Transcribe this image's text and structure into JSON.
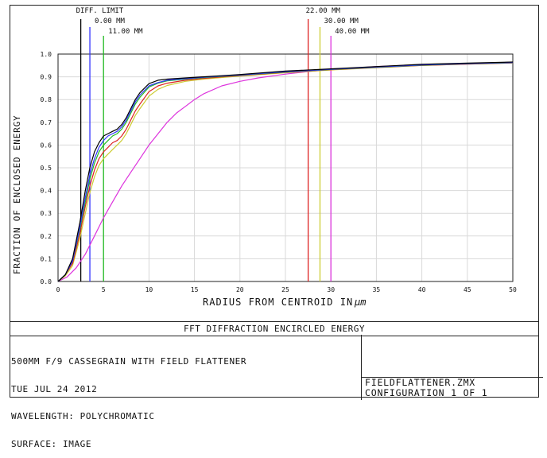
{
  "chart_data": {
    "type": "line",
    "xlabel": "RADIUS FROM CENTROID IN",
    "xlabel_unit": "µm",
    "ylabel": "FRACTION OF ENCLOSED ENERGY",
    "xlim": [
      0,
      50
    ],
    "ylim": [
      0,
      1.0
    ],
    "x_ticks": [
      "0",
      "5",
      "10",
      "15",
      "20",
      "25",
      "30",
      "35",
      "40",
      "45",
      "50"
    ],
    "y_ticks": [
      "0.0",
      "0.1",
      "0.2",
      "0.3",
      "0.4",
      "0.5",
      "0.6",
      "0.7",
      "0.8",
      "0.9",
      "1.0"
    ],
    "grid": true,
    "series": [
      {
        "name": "DIFF. LIMIT",
        "color": "#000000",
        "x": [
          0,
          0.8,
          1.6,
          2.4,
          3.0,
          3.5,
          4,
          4.5,
          5,
          5.5,
          6,
          6.5,
          7,
          7.5,
          8,
          8.5,
          9,
          10,
          11,
          12,
          14,
          16,
          18,
          20,
          25,
          30,
          35,
          40,
          45,
          50
        ],
        "y": [
          0,
          0.03,
          0.1,
          0.26,
          0.4,
          0.5,
          0.57,
          0.61,
          0.64,
          0.65,
          0.66,
          0.67,
          0.69,
          0.72,
          0.76,
          0.8,
          0.83,
          0.87,
          0.885,
          0.89,
          0.895,
          0.9,
          0.905,
          0.91,
          0.925,
          0.935,
          0.945,
          0.955,
          0.96,
          0.965
        ],
        "marker_x": 2.5
      },
      {
        "name": "0.00 MM",
        "color": "#3333ff",
        "x": [
          0,
          0.8,
          1.6,
          2.4,
          3.0,
          3.5,
          4,
          4.5,
          5,
          5.5,
          6,
          6.5,
          7,
          7.5,
          8,
          8.5,
          9,
          10,
          11,
          12,
          14,
          16,
          18,
          20,
          25,
          30,
          35,
          40,
          45,
          50
        ],
        "y": [
          0,
          0.03,
          0.09,
          0.24,
          0.37,
          0.47,
          0.54,
          0.59,
          0.62,
          0.64,
          0.65,
          0.66,
          0.68,
          0.71,
          0.75,
          0.79,
          0.82,
          0.86,
          0.875,
          0.885,
          0.892,
          0.898,
          0.903,
          0.908,
          0.922,
          0.933,
          0.943,
          0.952,
          0.958,
          0.963
        ],
        "marker_x": 3.5
      },
      {
        "name": "11.00 MM",
        "color": "#22bb22",
        "x": [
          0,
          0.8,
          1.6,
          2.4,
          3.0,
          3.5,
          4,
          4.5,
          5,
          5.5,
          6,
          6.5,
          7,
          7.5,
          8,
          8.5,
          9,
          10,
          11,
          12,
          14,
          16,
          18,
          20,
          25,
          30,
          35,
          40,
          45,
          50
        ],
        "y": [
          0,
          0.03,
          0.09,
          0.23,
          0.35,
          0.45,
          0.52,
          0.57,
          0.6,
          0.62,
          0.64,
          0.65,
          0.67,
          0.7,
          0.74,
          0.78,
          0.81,
          0.855,
          0.872,
          0.882,
          0.89,
          0.896,
          0.902,
          0.907,
          0.921,
          0.932,
          0.942,
          0.951,
          0.957,
          0.962
        ],
        "marker_x": 5.0
      },
      {
        "name": "22.00 MM",
        "color": "#dd2222",
        "x": [
          0,
          0.8,
          1.6,
          2.4,
          3.0,
          3.5,
          4,
          4.5,
          5,
          5.5,
          6,
          6.5,
          7,
          7.5,
          8,
          8.5,
          9,
          10,
          11,
          12,
          14,
          16,
          18,
          20,
          25,
          30,
          35,
          40,
          45,
          50
        ],
        "y": [
          0,
          0.03,
          0.08,
          0.21,
          0.33,
          0.42,
          0.49,
          0.54,
          0.57,
          0.59,
          0.61,
          0.62,
          0.64,
          0.67,
          0.71,
          0.75,
          0.78,
          0.835,
          0.86,
          0.872,
          0.885,
          0.893,
          0.9,
          0.905,
          0.92,
          0.931,
          0.941,
          0.95,
          0.956,
          0.961
        ],
        "marker_x": 27.5
      },
      {
        "name": "30.00 MM",
        "color": "#cccc33",
        "x": [
          0,
          0.8,
          1.6,
          2.4,
          3.0,
          3.5,
          4,
          4.5,
          5,
          5.5,
          6,
          6.5,
          7,
          7.5,
          8,
          8.5,
          9,
          10,
          11,
          12,
          14,
          16,
          18,
          20,
          25,
          30,
          35,
          40,
          45,
          50
        ],
        "y": [
          0,
          0.025,
          0.07,
          0.19,
          0.3,
          0.39,
          0.46,
          0.51,
          0.54,
          0.56,
          0.58,
          0.6,
          0.62,
          0.65,
          0.69,
          0.73,
          0.76,
          0.815,
          0.845,
          0.862,
          0.88,
          0.89,
          0.897,
          0.903,
          0.918,
          0.93,
          0.94,
          0.95,
          0.956,
          0.961
        ],
        "marker_x": 28.8
      },
      {
        "name": "40.00 MM",
        "color": "#dd33dd",
        "x": [
          0,
          1,
          2,
          3,
          4,
          5,
          6,
          7,
          8,
          9,
          10,
          11,
          12,
          13,
          14,
          15,
          16,
          18,
          20,
          22,
          25,
          28,
          30,
          35,
          40,
          45,
          50
        ],
        "y": [
          0,
          0.02,
          0.06,
          0.12,
          0.2,
          0.28,
          0.35,
          0.42,
          0.48,
          0.54,
          0.6,
          0.65,
          0.7,
          0.74,
          0.77,
          0.8,
          0.825,
          0.86,
          0.88,
          0.895,
          0.912,
          0.925,
          0.932,
          0.945,
          0.953,
          0.958,
          0.963
        ],
        "marker_x": 30.0
      }
    ]
  },
  "footer": {
    "title": "FFT DIFFRACTION ENCIRCLED ENERGY",
    "info_lines": [
      "500MM F/9 CASSEGRAIN WITH FIELD FLATTENER",
      "TUE JUL 24 2012",
      "WAVELENGTH: POLYCHROMATIC",
      "SURFACE: IMAGE"
    ],
    "file_lines": [
      "FIELDFLATTENER.ZMX",
      "CONFIGURATION 1 OF 1"
    ]
  }
}
